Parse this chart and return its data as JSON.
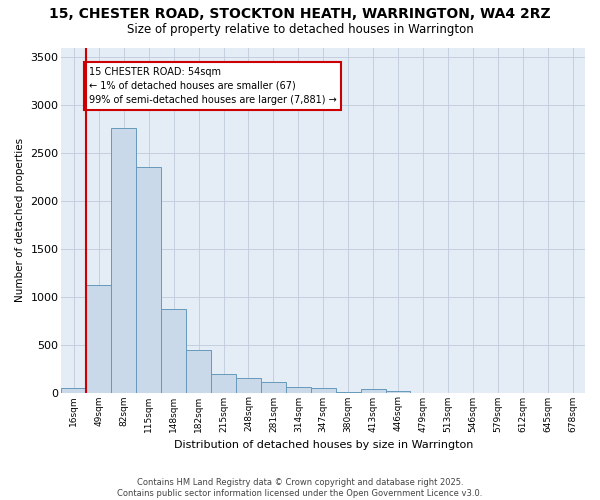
{
  "title": "15, CHESTER ROAD, STOCKTON HEATH, WARRINGTON, WA4 2RZ",
  "subtitle": "Size of property relative to detached houses in Warrington",
  "xlabel": "Distribution of detached houses by size in Warrington",
  "ylabel": "Number of detached properties",
  "bar_color": "#c9d9ea",
  "bar_edge_color": "#6699bb",
  "grid_color": "#c4cfe0",
  "background_color": "#e4ecf5",
  "annotation_box_color": "#cc0000",
  "annotation_text": "15 CHESTER ROAD: 54sqm\n← 1% of detached houses are smaller (67)\n99% of semi-detached houses are larger (7,881) →",
  "vline_color": "#cc0000",
  "categories": [
    "16sqm",
    "49sqm",
    "82sqm",
    "115sqm",
    "148sqm",
    "182sqm",
    "215sqm",
    "248sqm",
    "281sqm",
    "314sqm",
    "347sqm",
    "380sqm",
    "413sqm",
    "446sqm",
    "479sqm",
    "513sqm",
    "546sqm",
    "579sqm",
    "612sqm",
    "645sqm",
    "678sqm"
  ],
  "values": [
    50,
    1120,
    2760,
    2350,
    870,
    440,
    190,
    155,
    110,
    60,
    50,
    5,
    40,
    15,
    0,
    0,
    0,
    0,
    0,
    0,
    0
  ],
  "ylim": [
    0,
    3600
  ],
  "yticks": [
    0,
    500,
    1000,
    1500,
    2000,
    2500,
    3000,
    3500
  ],
  "footer": "Contains HM Land Registry data © Crown copyright and database right 2025.\nContains public sector information licensed under the Open Government Licence v3.0.",
  "vline_bin_index": 1,
  "figsize": [
    6.0,
    5.0
  ],
  "dpi": 100
}
